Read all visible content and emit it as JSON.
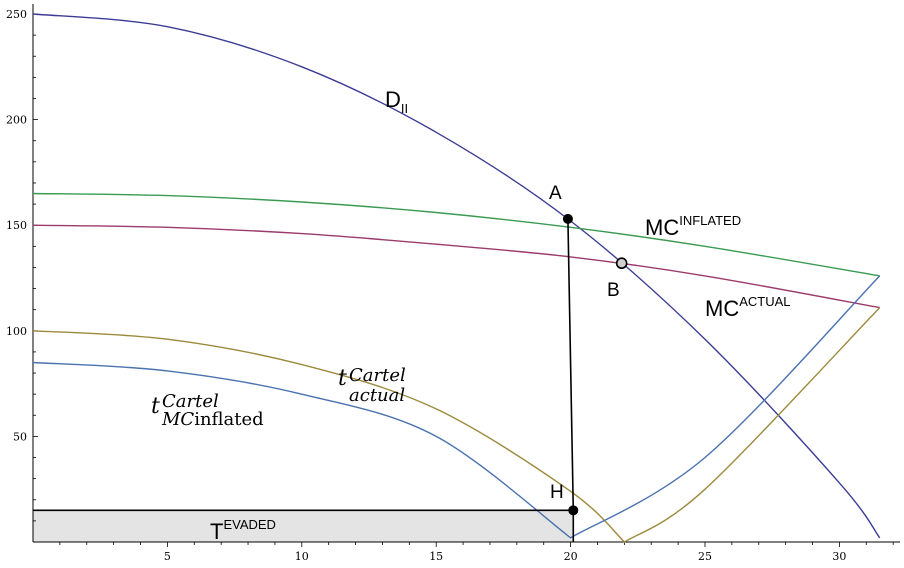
{
  "chart_data": {
    "type": "line",
    "xlim": [
      0,
      32
    ],
    "ylim": [
      0,
      250
    ],
    "x_ticks": [
      5,
      10,
      15,
      20,
      25,
      30
    ],
    "y_ticks": [
      50,
      100,
      150,
      200,
      250
    ],
    "series": [
      {
        "color": "#3c3c96",
        "x": [
          0,
          5,
          10,
          15,
          20,
          25,
          30,
          31.5
        ],
        "y": [
          250,
          244,
          225,
          194,
          152,
          96,
          28,
          2
        ]
      },
      {
        "color": "#3a9a52",
        "x": [
          0,
          5,
          10,
          15,
          20,
          25,
          31.5
        ],
        "y": [
          165,
          164,
          161,
          156,
          149,
          140,
          126
        ]
      },
      {
        "color": "#9c3a6e",
        "x": [
          0,
          5,
          10,
          15,
          20,
          25,
          31.5
        ],
        "y": [
          150,
          149,
          146,
          141,
          135,
          126,
          111
        ]
      },
      {
        "color": "#9c8a3c",
        "x": [
          0,
          5,
          10,
          15,
          20,
          22,
          25,
          31.5
        ],
        "y": [
          100,
          96,
          84,
          63,
          24,
          0,
          25,
          111
        ]
      },
      {
        "color": "#4a72b0",
        "x": [
          0,
          5,
          10,
          15,
          20,
          25,
          31.5
        ],
        "y": [
          85,
          81,
          70,
          50,
          2,
          40,
          126
        ]
      }
    ],
    "points": [
      {
        "label": "A",
        "x": 19.9,
        "y": 153,
        "style": "filled"
      },
      {
        "label": "B",
        "x": 21.9,
        "y": 132,
        "style": "open"
      },
      {
        "label": "H",
        "x": 20.1,
        "y": 15,
        "style": "filled"
      }
    ],
    "segments": [
      {
        "from": [
          19.9,
          153
        ],
        "to": [
          20.1,
          15
        ]
      },
      {
        "from": [
          20.1,
          15
        ],
        "to": [
          20.1,
          0
        ]
      },
      {
        "from": [
          0,
          15
        ],
        "to": [
          20.1,
          15
        ]
      }
    ],
    "shaded_region": {
      "x": [
        0,
        20.1
      ],
      "y": [
        0,
        15
      ],
      "color": "#e4e4e4"
    },
    "labels": {
      "demand": {
        "main": "D",
        "sub": "II"
      },
      "mc_inflated": {
        "main": "MC",
        "sup": "INFLATED"
      },
      "mc_actual": {
        "main": "MC",
        "sup": "ACTUAL"
      },
      "t_actual": {
        "main": "t",
        "sup": "Cartel",
        "sub": "actual"
      },
      "t_mc_inflated": {
        "main": "t",
        "sup": "Cartel",
        "sub": "MC",
        "tail": "inflated"
      },
      "t_evaded": {
        "main": "T",
        "sup": "EVADED"
      },
      "point_a": "A",
      "point_b": "B",
      "point_h": "H"
    }
  }
}
